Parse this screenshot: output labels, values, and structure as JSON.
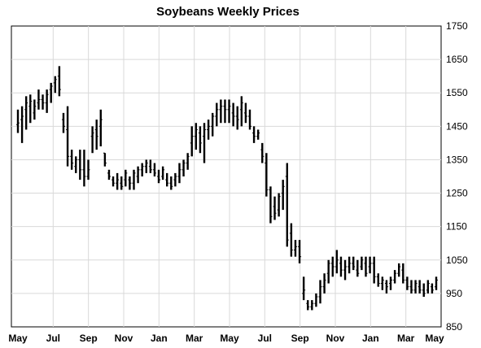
{
  "chart_data": {
    "type": "bar",
    "title": "Soybeans Weekly Prices",
    "xlabel": "",
    "ylabel": "",
    "ylim": [
      850,
      1750
    ],
    "yticks": [
      850,
      950,
      1050,
      1150,
      1250,
      1350,
      1450,
      1550,
      1650,
      1750
    ],
    "xticks": [
      "May",
      "Jul",
      "Sep",
      "Nov",
      "Jan",
      "Mar",
      "May",
      "Jul",
      "Sep",
      "Nov",
      "Jan",
      "Mar",
      "May"
    ],
    "grid": true,
    "colors": {
      "bars": "#000000",
      "grid": "#d9d9d9",
      "highlight": "#fff3dc"
    },
    "ohlc": [
      [
        1455,
        1500,
        1430,
        1460
      ],
      [
        1470,
        1510,
        1400,
        1480
      ],
      [
        1500,
        1540,
        1440,
        1520
      ],
      [
        1510,
        1545,
        1460,
        1525
      ],
      [
        1490,
        1530,
        1470,
        1510
      ],
      [
        1520,
        1560,
        1500,
        1530
      ],
      [
        1530,
        1545,
        1500,
        1520
      ],
      [
        1520,
        1560,
        1490,
        1545
      ],
      [
        1560,
        1580,
        1520,
        1570
      ],
      [
        1580,
        1600,
        1550,
        1590
      ],
      [
        1600,
        1630,
        1540,
        1560
      ],
      [
        1470,
        1490,
        1430,
        1450
      ],
      [
        1440,
        1510,
        1330,
        1360
      ],
      [
        1360,
        1380,
        1320,
        1340
      ],
      [
        1330,
        1360,
        1310,
        1350
      ],
      [
        1350,
        1380,
        1290,
        1320
      ],
      [
        1320,
        1380,
        1270,
        1300
      ],
      [
        1300,
        1350,
        1290,
        1320
      ],
      [
        1420,
        1450,
        1370,
        1430
      ],
      [
        1440,
        1470,
        1380,
        1420
      ],
      [
        1450,
        1500,
        1390,
        1470
      ],
      [
        1370,
        1370,
        1330,
        1340
      ],
      [
        1310,
        1320,
        1290,
        1300
      ],
      [
        1290,
        1300,
        1270,
        1280
      ],
      [
        1280,
        1310,
        1260,
        1290
      ],
      [
        1280,
        1300,
        1260,
        1270
      ],
      [
        1290,
        1320,
        1270,
        1310
      ],
      [
        1290,
        1300,
        1260,
        1280
      ],
      [
        1280,
        1320,
        1260,
        1310
      ],
      [
        1300,
        1330,
        1280,
        1320
      ],
      [
        1320,
        1340,
        1300,
        1330
      ],
      [
        1330,
        1350,
        1310,
        1340
      ],
      [
        1330,
        1350,
        1310,
        1320
      ],
      [
        1320,
        1340,
        1300,
        1310
      ],
      [
        1300,
        1320,
        1280,
        1290
      ],
      [
        1300,
        1330,
        1290,
        1320
      ],
      [
        1290,
        1310,
        1270,
        1280
      ],
      [
        1280,
        1300,
        1260,
        1270
      ],
      [
        1290,
        1310,
        1270,
        1300
      ],
      [
        1300,
        1340,
        1280,
        1320
      ],
      [
        1320,
        1350,
        1300,
        1340
      ],
      [
        1340,
        1370,
        1320,
        1360
      ],
      [
        1400,
        1450,
        1360,
        1420
      ],
      [
        1420,
        1460,
        1380,
        1440
      ],
      [
        1430,
        1450,
        1370,
        1400
      ],
      [
        1420,
        1460,
        1340,
        1440
      ],
      [
        1440,
        1470,
        1410,
        1450
      ],
      [
        1450,
        1490,
        1420,
        1480
      ],
      [
        1480,
        1520,
        1450,
        1500
      ],
      [
        1500,
        1530,
        1460,
        1510
      ],
      [
        1510,
        1530,
        1460,
        1500
      ],
      [
        1500,
        1530,
        1460,
        1510
      ],
      [
        1490,
        1520,
        1450,
        1480
      ],
      [
        1480,
        1510,
        1440,
        1470
      ],
      [
        1500,
        1540,
        1450,
        1520
      ],
      [
        1490,
        1520,
        1460,
        1480
      ],
      [
        1480,
        1500,
        1440,
        1450
      ],
      [
        1430,
        1450,
        1400,
        1420
      ],
      [
        1420,
        1440,
        1410,
        1430
      ],
      [
        1380,
        1400,
        1340,
        1360
      ],
      [
        1340,
        1370,
        1240,
        1260
      ],
      [
        1260,
        1270,
        1160,
        1180
      ],
      [
        1210,
        1240,
        1170,
        1190
      ],
      [
        1200,
        1250,
        1180,
        1240
      ],
      [
        1250,
        1290,
        1200,
        1270
      ],
      [
        1300,
        1340,
        1090,
        1110
      ],
      [
        1130,
        1160,
        1060,
        1080
      ],
      [
        1080,
        1110,
        1060,
        1090
      ],
      [
        1090,
        1110,
        1040,
        1060
      ],
      [
        950,
        1000,
        930,
        960
      ],
      [
        920,
        930,
        900,
        910
      ],
      [
        910,
        930,
        900,
        920
      ],
      [
        920,
        950,
        910,
        940
      ],
      [
        940,
        990,
        920,
        970
      ],
      [
        970,
        1010,
        950,
        990
      ],
      [
        1010,
        1050,
        980,
        1040
      ],
      [
        1040,
        1060,
        1000,
        1030
      ],
      [
        1030,
        1080,
        1010,
        1050
      ],
      [
        1040,
        1060,
        1000,
        1020
      ],
      [
        1020,
        1050,
        990,
        1030
      ],
      [
        1030,
        1060,
        1010,
        1040
      ],
      [
        1040,
        1060,
        1020,
        1030
      ],
      [
        1020,
        1050,
        1000,
        1010
      ],
      [
        1030,
        1060,
        1020,
        1050
      ],
      [
        1040,
        1060,
        1000,
        1010
      ],
      [
        1030,
        1060,
        1010,
        1040
      ],
      [
        1040,
        1060,
        980,
        1000
      ],
      [
        1000,
        1010,
        970,
        980
      ],
      [
        980,
        1000,
        960,
        990
      ],
      [
        980,
        990,
        950,
        970
      ],
      [
        980,
        1000,
        960,
        990
      ],
      [
        990,
        1020,
        980,
        1010
      ],
      [
        1010,
        1040,
        1000,
        1030
      ],
      [
        1020,
        1040,
        980,
        990
      ],
      [
        990,
        1000,
        960,
        970
      ],
      [
        970,
        990,
        950,
        960
      ],
      [
        960,
        990,
        950,
        980
      ],
      [
        970,
        990,
        950,
        960
      ],
      [
        960,
        980,
        940,
        950
      ],
      [
        960,
        990,
        950,
        980
      ],
      [
        970,
        980,
        950,
        960
      ],
      [
        970,
        1000,
        960,
        990
      ]
    ]
  }
}
